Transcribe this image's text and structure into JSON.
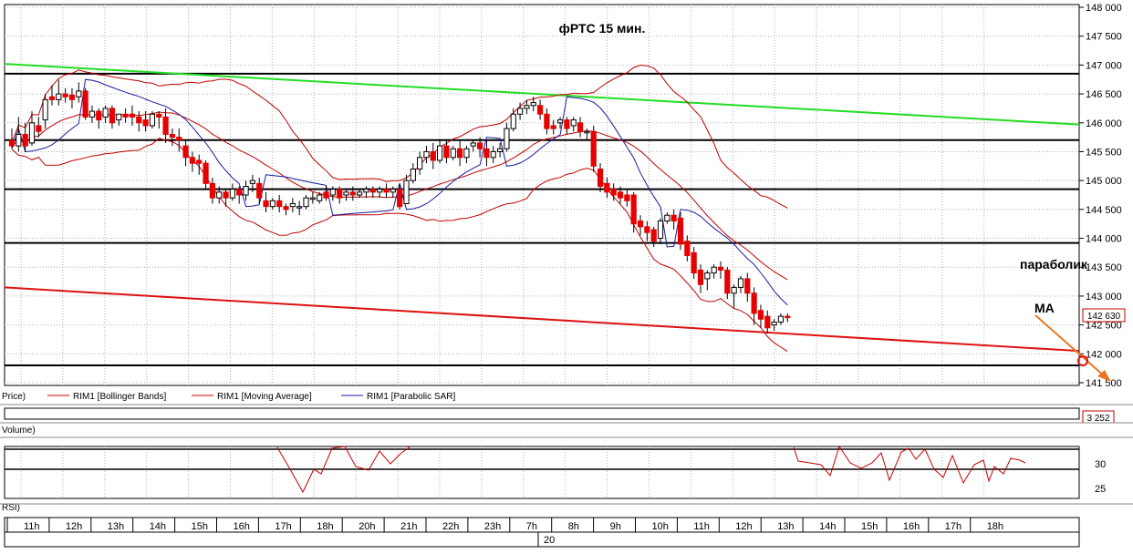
{
  "title": "фРТС   15 мин.",
  "price_axis_labels": [
    "148 000",
    "147 500",
    "147 000",
    "146 500",
    "146 000",
    "145 500",
    "145 000",
    "144 500",
    "144 000",
    "143 500",
    "143 000",
    "142 500",
    "142 000",
    "141 500"
  ],
  "current_price_badge": "142 630",
  "volume_badge": "3 252",
  "legend": {
    "price": "Price)",
    "bollinger": "RIM1 [Bollinger Bands]",
    "ma": "RIM1 [Moving Average]",
    "sar": "RIM1 [Parabolic SAR]"
  },
  "volume_label": "Volume)",
  "rsi_label": "RSI)",
  "rsi_axis_labels": [
    "30",
    "25"
  ],
  "time_axis_labels": [
    "11h",
    "12h",
    "13h",
    "14h",
    "15h",
    "16h",
    "17h",
    "18h",
    "20h",
    "21h",
    "22h",
    "23h",
    "7h",
    "8h",
    "9h",
    "10h",
    "11h",
    "12h",
    "13h",
    "14h",
    "15h",
    "16h",
    "17h",
    "18h"
  ],
  "date_label": "20",
  "annotations": {
    "parabolic": "параболик",
    "ma": "MA"
  },
  "colors": {
    "up_candle": "#ffffff",
    "down_candle": "#e60000",
    "bollinger": "#c00000",
    "ma": "#c00000",
    "sar": "#1a1aa0",
    "green_trend": "#22dd22",
    "red_trend": "#dd1111",
    "arrow": "#e87722"
  },
  "chart_data": {
    "type": "candlestick",
    "timeframe": "15 мин.",
    "ylim": [
      141500,
      148000
    ],
    "price_levels": [
      146850,
      145700,
      144850,
      143920,
      141800
    ],
    "green_trendline": [
      [
        0,
        147020
      ],
      [
        155,
        145970
      ]
    ],
    "red_trendline": [
      [
        0,
        143150
      ],
      [
        155,
        142050
      ]
    ],
    "candles": [
      [
        145700,
        145900,
        145600,
        145550
      ],
      [
        145600,
        146100,
        145800,
        145500
      ],
      [
        145800,
        146000,
        145600,
        145500
      ],
      [
        145650,
        146200,
        146000,
        145600
      ],
      [
        145950,
        146100,
        145850,
        145750
      ],
      [
        146050,
        146500,
        146400,
        145900
      ],
      [
        146450,
        146650,
        146400,
        146300
      ],
      [
        146400,
        146750,
        146500,
        146300
      ],
      [
        146500,
        146600,
        146450,
        146350
      ],
      [
        146480,
        146600,
        146400,
        146250
      ],
      [
        146450,
        146700,
        146550,
        146350
      ],
      [
        146550,
        146600,
        146100,
        146050
      ],
      [
        146100,
        146300,
        146200,
        146000
      ],
      [
        146200,
        146250,
        146050,
        145900
      ],
      [
        146100,
        146300,
        146250,
        146000
      ],
      [
        146250,
        146300,
        146000,
        145900
      ],
      [
        146050,
        146100,
        146150,
        145950
      ],
      [
        146150,
        146250,
        146100,
        146000
      ],
      [
        146150,
        146300,
        146100,
        145950
      ],
      [
        146100,
        146200,
        146000,
        145850
      ],
      [
        146050,
        146200,
        145950,
        145850
      ],
      [
        145950,
        146200,
        146150,
        145900
      ],
      [
        146150,
        146200,
        146100,
        145900
      ],
      [
        146100,
        146250,
        145800,
        145650
      ],
      [
        145800,
        145900,
        145750,
        145600
      ],
      [
        145750,
        145900,
        145700,
        145500
      ],
      [
        145600,
        145700,
        145400,
        145250
      ],
      [
        145400,
        145500,
        145300,
        145150
      ],
      [
        145350,
        145450,
        145300,
        145100
      ],
      [
        145300,
        145350,
        144950,
        144850
      ],
      [
        144950,
        145050,
        144700,
        144600
      ],
      [
        144700,
        144900,
        144800,
        144600
      ],
      [
        144800,
        144850,
        144700,
        144550
      ],
      [
        144700,
        144950,
        144850,
        144650
      ],
      [
        144850,
        144900,
        144750,
        144600
      ],
      [
        144750,
        145000,
        144900,
        144650
      ],
      [
        144950,
        145100,
        145000,
        144800
      ],
      [
        144950,
        145050,
        144700,
        144600
      ],
      [
        144650,
        144800,
        144550,
        144450
      ],
      [
        144550,
        144700,
        144650,
        144500
      ],
      [
        144650,
        144750,
        144550,
        144450
      ],
      [
        144550,
        144600,
        144500,
        144400
      ],
      [
        144550,
        144700,
        144600,
        144450
      ],
      [
        144550,
        144650,
        144550,
        144400
      ],
      [
        144550,
        144750,
        144700,
        144500
      ],
      [
        144700,
        144800,
        144700,
        144600
      ],
      [
        144650,
        144800,
        144750,
        144600
      ],
      [
        144800,
        144900,
        144700,
        144650
      ],
      [
        144750,
        144900,
        144850,
        144650
      ],
      [
        144850,
        144900,
        144700,
        144600
      ],
      [
        144750,
        144850,
        144800,
        144650
      ],
      [
        144800,
        144900,
        144750,
        144650
      ],
      [
        144750,
        144850,
        144800,
        144700
      ],
      [
        144800,
        144900,
        144850,
        144700
      ],
      [
        144850,
        144900,
        144800,
        144700
      ],
      [
        144800,
        144900,
        144850,
        144700
      ],
      [
        144850,
        144950,
        144800,
        144700
      ],
      [
        144800,
        144900,
        144850,
        144700
      ],
      [
        144850,
        144950,
        144550,
        144500
      ],
      [
        144600,
        145100,
        145000,
        144600
      ],
      [
        145000,
        145300,
        145200,
        144950
      ],
      [
        145200,
        145500,
        145400,
        145100
      ],
      [
        145400,
        145600,
        145500,
        145300
      ],
      [
        145500,
        145650,
        145350,
        145200
      ],
      [
        145350,
        145700,
        145600,
        145300
      ],
      [
        145600,
        145700,
        145400,
        145300
      ],
      [
        145400,
        145600,
        145550,
        145350
      ],
      [
        145550,
        145700,
        145400,
        145250
      ],
      [
        145400,
        145600,
        145550,
        145300
      ],
      [
        145600,
        145700,
        145650,
        145500
      ],
      [
        145650,
        145750,
        145550,
        145400
      ],
      [
        145550,
        145700,
        145400,
        145250
      ],
      [
        145400,
        145600,
        145500,
        145300
      ],
      [
        145500,
        145650,
        145550,
        145400
      ],
      [
        145550,
        146000,
        145900,
        145500
      ],
      [
        145900,
        146250,
        146150,
        145850
      ],
      [
        146150,
        146350,
        146250,
        146050
      ],
      [
        146250,
        146400,
        146300,
        146150
      ],
      [
        146300,
        146450,
        146350,
        146200
      ],
      [
        146300,
        146400,
        146150,
        146050
      ],
      [
        146150,
        146250,
        145900,
        145800
      ],
      [
        145950,
        146050,
        145900,
        145800
      ],
      [
        146000,
        146100,
        146050,
        145900
      ],
      [
        146050,
        146100,
        145900,
        145800
      ],
      [
        145950,
        146100,
        146050,
        145850
      ],
      [
        146000,
        146100,
        145850,
        145750
      ],
      [
        145850,
        145900,
        145850,
        145700
      ],
      [
        145850,
        145950,
        145250,
        145150
      ],
      [
        145200,
        145300,
        144900,
        144800
      ],
      [
        144950,
        145050,
        144800,
        144700
      ],
      [
        144850,
        144950,
        144750,
        144650
      ],
      [
        144800,
        144900,
        144700,
        144600
      ],
      [
        144750,
        144850,
        144650,
        144550
      ],
      [
        144750,
        144800,
        144250,
        144100
      ],
      [
        144300,
        144400,
        144200,
        144050
      ],
      [
        144200,
        144300,
        144100,
        143950
      ],
      [
        144150,
        144200,
        143950,
        143850
      ],
      [
        144000,
        144350,
        144300,
        143900
      ],
      [
        144300,
        144450,
        144400,
        144250
      ],
      [
        144400,
        144500,
        144300,
        144150
      ],
      [
        144350,
        144450,
        143900,
        143800
      ],
      [
        143950,
        144050,
        143700,
        143600
      ],
      [
        143750,
        143850,
        143400,
        143300
      ],
      [
        143450,
        143550,
        143200,
        143050
      ],
      [
        143300,
        143450,
        143400,
        143100
      ],
      [
        143400,
        143550,
        143500,
        143300
      ],
      [
        143500,
        143600,
        143450,
        143300
      ],
      [
        143450,
        143500,
        143050,
        142950
      ],
      [
        143050,
        143200,
        143150,
        142800
      ],
      [
        143150,
        143350,
        143300,
        143050
      ],
      [
        143300,
        143400,
        143050,
        142900
      ],
      [
        143050,
        143150,
        142700,
        142500
      ],
      [
        142750,
        142850,
        142600,
        142450
      ],
      [
        142650,
        142750,
        142450,
        142350
      ],
      [
        142500,
        142600,
        142550,
        142400
      ],
      [
        142550,
        142700,
        142650,
        142500
      ],
      [
        142650,
        142700,
        142630,
        142550
      ]
    ]
  }
}
